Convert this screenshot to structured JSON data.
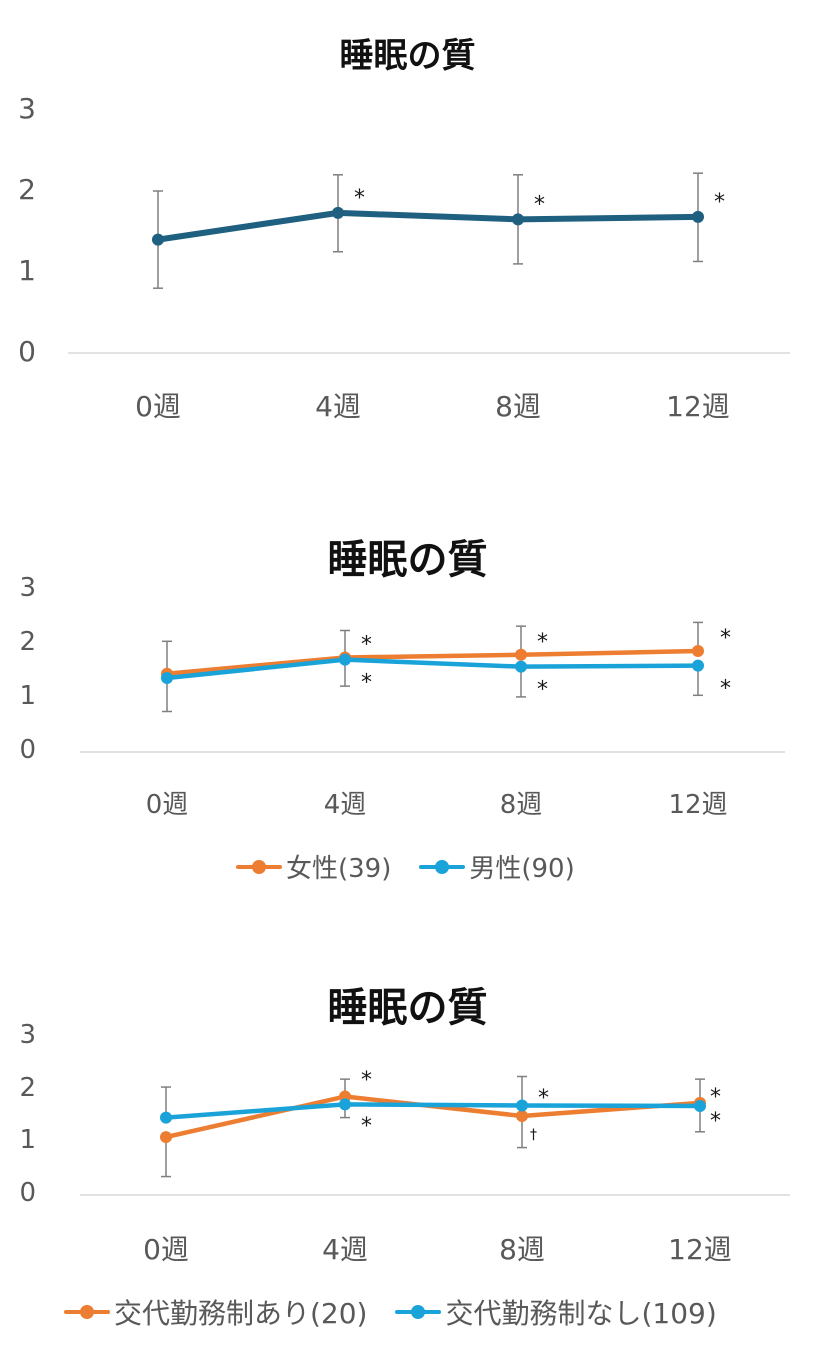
{
  "charts": [
    {
      "title": "睡眠の質",
      "chart_data": {
        "type": "line",
        "categories": [
          "0週",
          "4週",
          "8週",
          "12週"
        ],
        "yticks": [
          "0",
          "1",
          "2",
          "3"
        ],
        "ylim": [
          0,
          3
        ],
        "grid": false,
        "series": [
          {
            "color": "#1f5f7f",
            "values": [
              1.4,
              1.73,
              1.65,
              1.68
            ],
            "err_low": [
              0.8,
              1.25,
              1.1,
              1.13
            ],
            "err_high": [
              2.0,
              2.2,
              2.2,
              2.22
            ],
            "marks": [
              "",
              "*",
              "*",
              "*"
            ]
          }
        ]
      }
    },
    {
      "title": "睡眠の質",
      "chart_data": {
        "type": "line",
        "categories": [
          "0週",
          "4週",
          "8週",
          "12週"
        ],
        "yticks": [
          "0",
          "1",
          "2",
          "3"
        ],
        "ylim": [
          0,
          3
        ],
        "grid": false,
        "legend": "bottom",
        "series": [
          {
            "name": "女性(39)",
            "color": "#ed7d31",
            "values": [
              1.45,
              1.75,
              1.8,
              1.87
            ],
            "err_low": [
              null,
              null,
              null,
              null
            ],
            "err_high": [
              2.05,
              2.25,
              2.33,
              2.4
            ],
            "marks": [
              "",
              "*",
              "*",
              "*"
            ]
          },
          {
            "name": "男性(90)",
            "color": "#1aa3d9",
            "values": [
              1.37,
              1.71,
              1.58,
              1.6
            ],
            "err_low": [
              0.75,
              1.22,
              1.02,
              1.05
            ],
            "err_high": [
              null,
              null,
              null,
              null
            ],
            "marks": [
              "",
              "*",
              "*",
              "*"
            ]
          }
        ]
      }
    },
    {
      "title": "睡眠の質",
      "chart_data": {
        "type": "line",
        "categories": [
          "0週",
          "4週",
          "8週",
          "12週"
        ],
        "yticks": [
          "0",
          "1",
          "2",
          "3"
        ],
        "ylim": [
          0,
          3
        ],
        "grid": false,
        "legend": "bottom",
        "series": [
          {
            "name": "交代勤務制あり(20)",
            "color": "#ed7d31",
            "values": [
              1.1,
              1.87,
              1.5,
              1.75
            ],
            "err_low": [
              0.35,
              null,
              0.9,
              null
            ],
            "err_high": [
              null,
              2.2,
              null,
              2.2
            ],
            "marks": [
              "",
              "*",
              "†",
              "*"
            ]
          },
          {
            "name": "交代勤務制なし(109)",
            "color": "#1aa3d9",
            "values": [
              1.47,
              1.72,
              1.7,
              1.69
            ],
            "err_low": [
              null,
              1.47,
              null,
              1.2
            ],
            "err_high": [
              2.05,
              null,
              2.25,
              null
            ],
            "marks": [
              "",
              "*",
              "*",
              "*"
            ]
          }
        ]
      }
    }
  ]
}
